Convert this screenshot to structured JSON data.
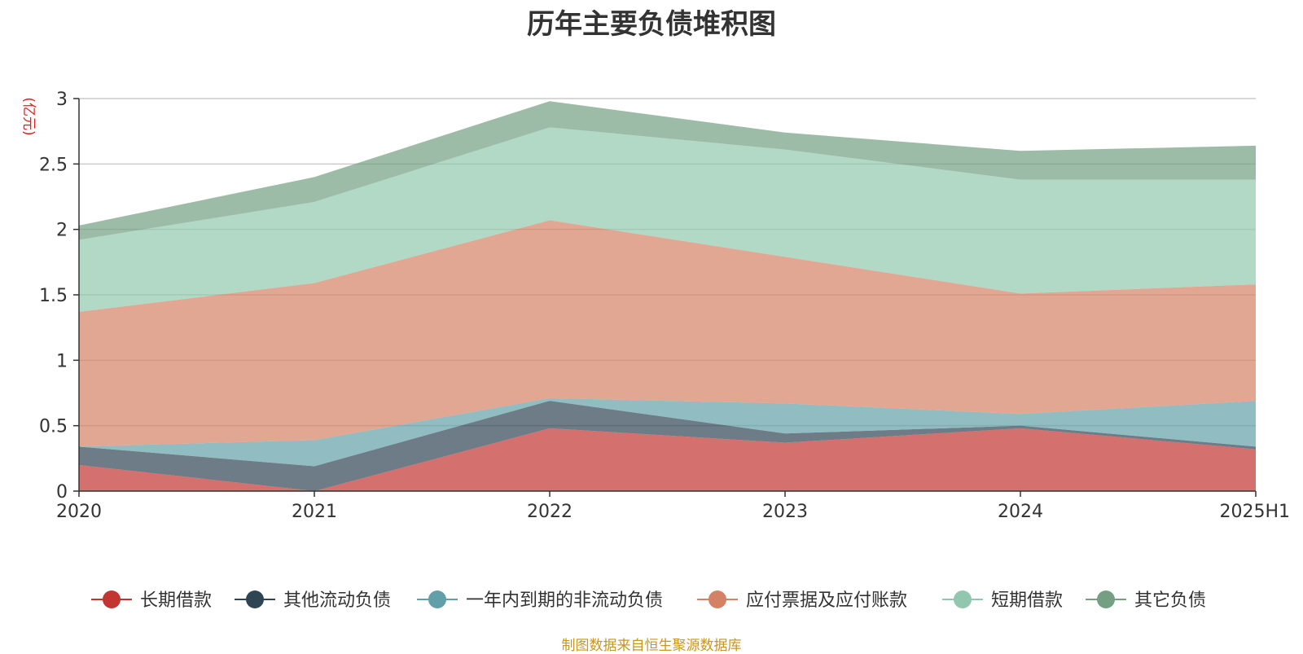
{
  "chart_data": {
    "type": "area",
    "stacked": true,
    "title": "历年主要负债堆积图",
    "ylabel": "(亿元)",
    "xlabel": "",
    "categories": [
      "2020",
      "2021",
      "2022",
      "2023",
      "2024",
      "2025H1"
    ],
    "ylim": [
      0,
      3
    ],
    "yticks": [
      "0",
      "0.5",
      "1",
      "1.5",
      "2",
      "2.5",
      "3"
    ],
    "grid": true,
    "legend_position": "bottom",
    "series": [
      {
        "name": "长期借款",
        "color": "#c23531",
        "values": [
          0.2,
          0.0,
          0.48,
          0.37,
          0.48,
          0.32
        ]
      },
      {
        "name": "其他流动负债",
        "color": "#2f4554",
        "values": [
          0.14,
          0.19,
          0.21,
          0.07,
          0.02,
          0.02
        ]
      },
      {
        "name": "一年内到期的非流动负债",
        "color": "#61a0a8",
        "values": [
          0.0,
          0.2,
          0.02,
          0.23,
          0.09,
          0.35
        ]
      },
      {
        "name": "应付票据及应付账款",
        "color": "#d48265",
        "values": [
          1.03,
          1.2,
          1.36,
          1.12,
          0.92,
          0.89
        ]
      },
      {
        "name": "短期借款",
        "color": "#91c7ae",
        "values": [
          0.55,
          0.62,
          0.71,
          0.82,
          0.87,
          0.8
        ]
      },
      {
        "name": "其它负债",
        "color": "#749f83",
        "values": [
          0.11,
          0.19,
          0.2,
          0.13,
          0.22,
          0.26
        ]
      }
    ]
  },
  "footer": {
    "source": "制图数据来自恒生聚源数据库"
  }
}
